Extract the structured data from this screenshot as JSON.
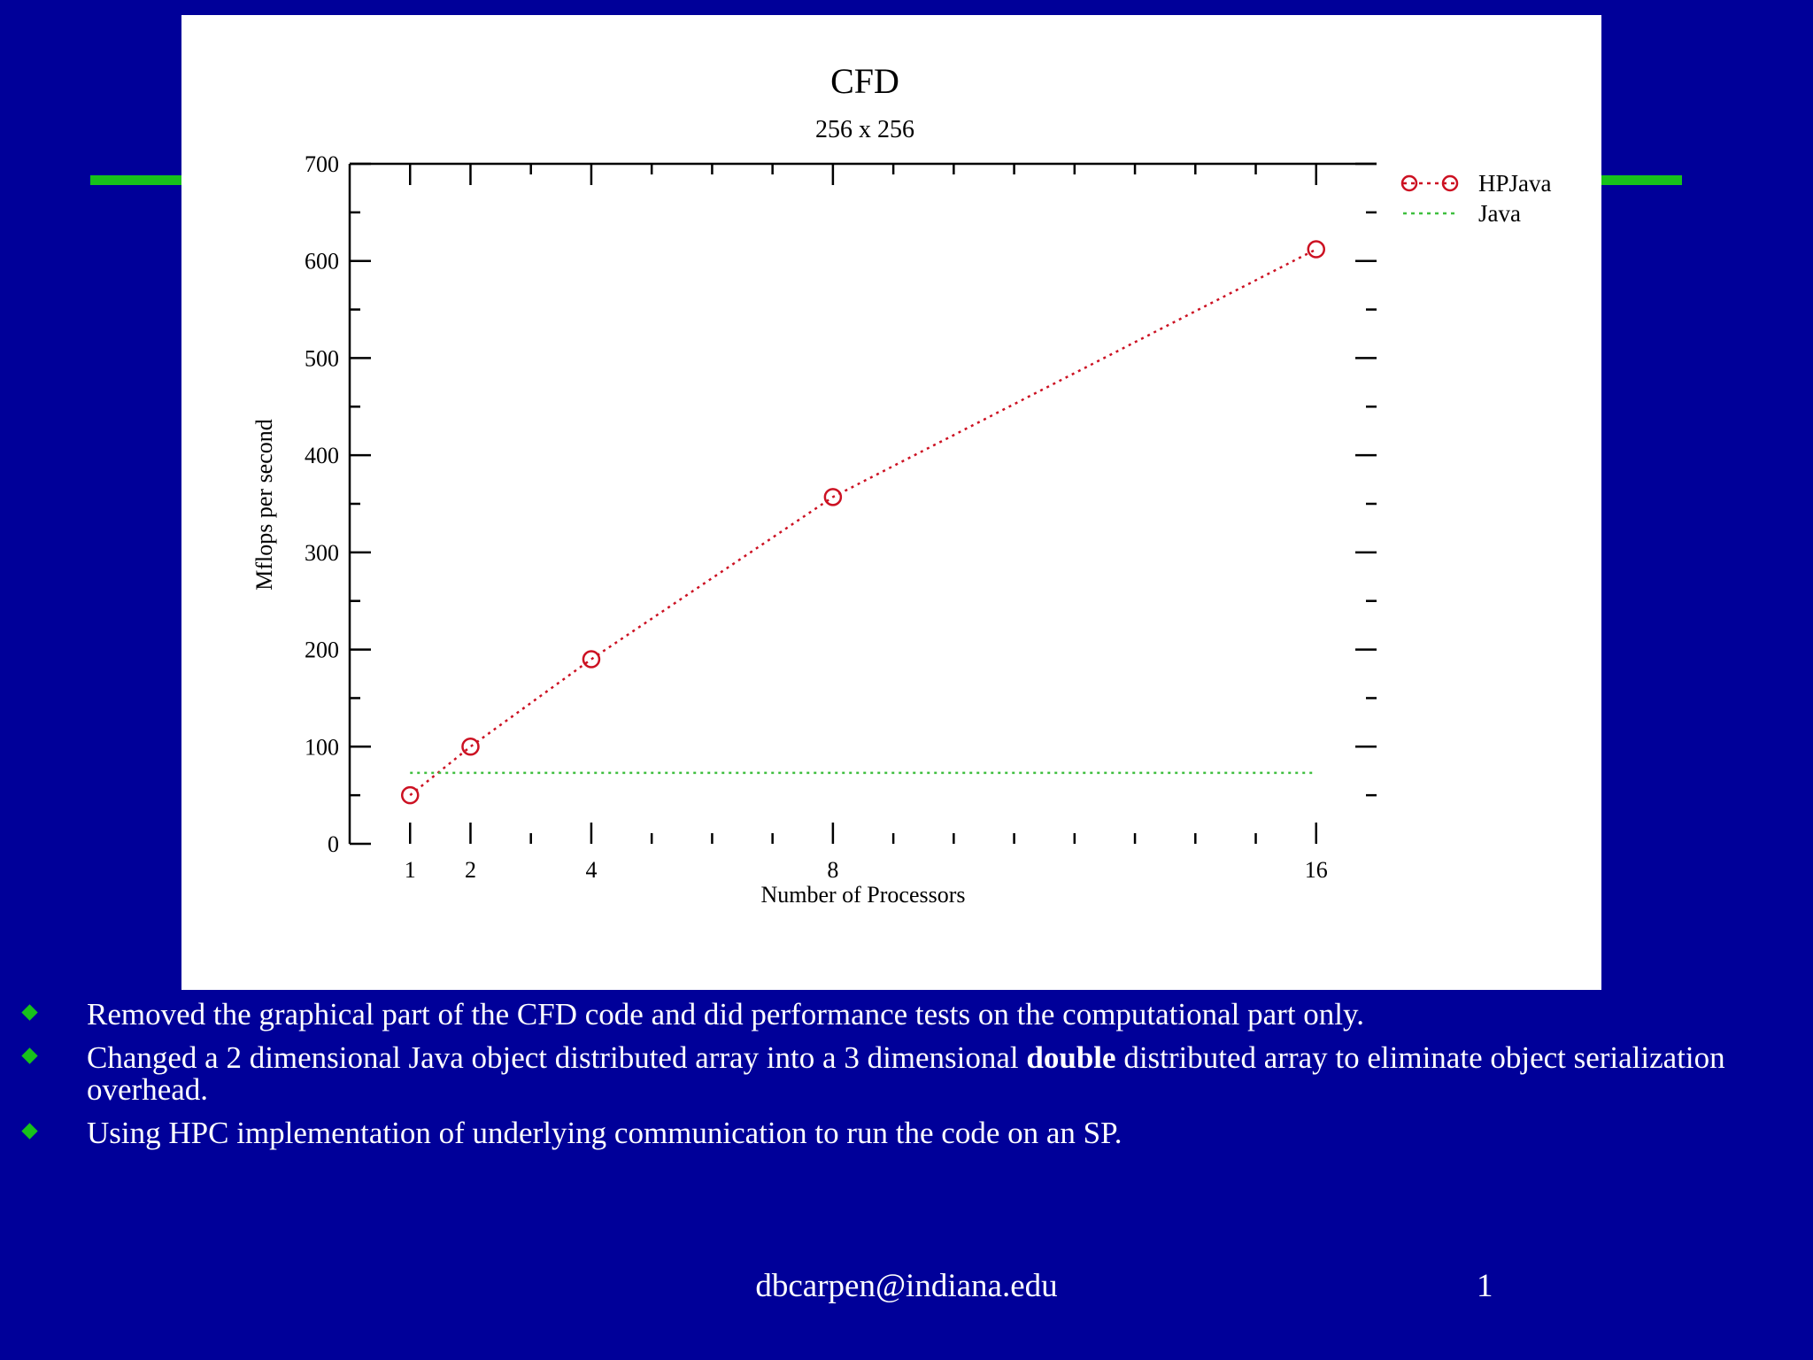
{
  "colors": {
    "background": "#000099",
    "accent": "#17c21b",
    "hpjava": "#cc1122",
    "java": "#3fbf3f"
  },
  "chart_data": {
    "type": "line",
    "title": "CFD",
    "subtitle": "256 x 256",
    "xlabel": "Number of Processors",
    "ylabel": "Mflops per second",
    "xlim": [
      0,
      17
    ],
    "ylim": [
      0,
      700
    ],
    "x_ticks": [
      1,
      2,
      4,
      8,
      16
    ],
    "y_ticks": [
      0,
      100,
      200,
      300,
      400,
      500,
      600,
      700
    ],
    "grid": false,
    "legend_position": "top-right, outside plot",
    "series": [
      {
        "name": "HPJava",
        "color": "#cc1122",
        "marker": "circle",
        "x": [
          1,
          2,
          4,
          8,
          16
        ],
        "y": [
          50,
          100,
          190,
          357,
          612
        ]
      },
      {
        "name": "Java",
        "color": "#3fbf3f",
        "marker": "none",
        "x": [
          1,
          16
        ],
        "y": [
          73,
          73
        ]
      }
    ]
  },
  "bullets": [
    {
      "before": "Removed the graphical part of the CFD code and did performance tests on the computational part only.",
      "bold": "",
      "after": ""
    },
    {
      "before": "Changed a 2 dimensional Java object distributed array into a 3 dimensional ",
      "bold": "double",
      "after": " distributed array to eliminate object serialization overhead."
    },
    {
      "before": "Using HPC implementation of underlying communication to run the code on an SP.",
      "bold": "",
      "after": ""
    }
  ],
  "footer": {
    "email": "dbcarpen@indiana.edu",
    "page": "1"
  }
}
